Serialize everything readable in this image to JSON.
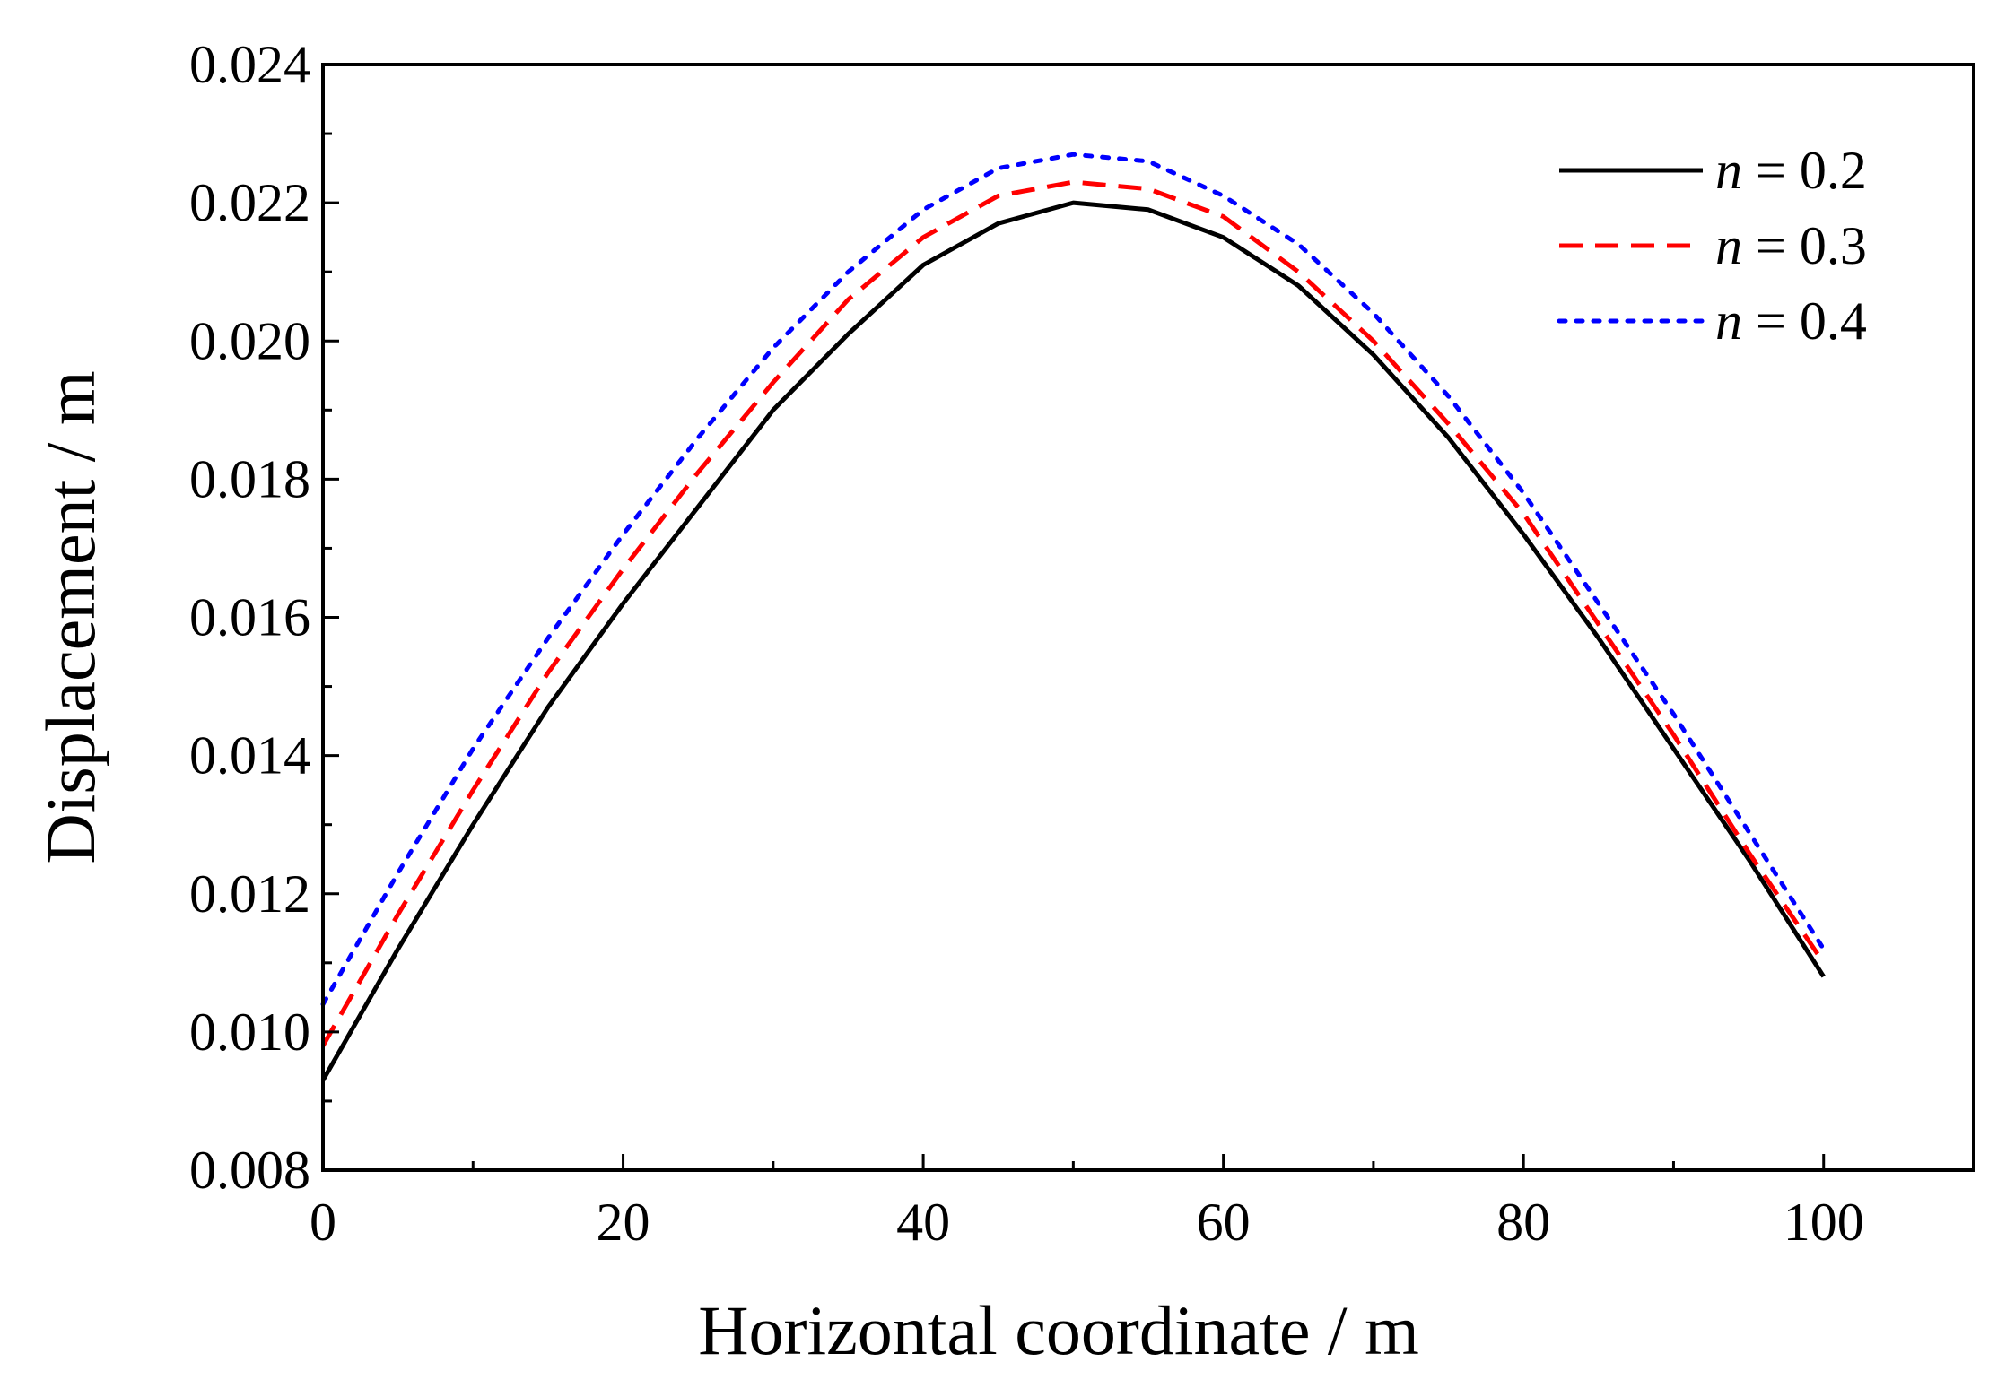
{
  "chart_data": {
    "type": "line",
    "title": "",
    "xlabel": "Horizontal coordinate / m",
    "ylabel": "Displacement / m",
    "xlim": [
      0,
      110
    ],
    "ylim": [
      0.008,
      0.024
    ],
    "xticks": [
      0,
      20,
      40,
      60,
      80,
      100
    ],
    "xtick_labels": [
      "0",
      "20",
      "40",
      "60",
      "80",
      "100"
    ],
    "yticks": [
      0.008,
      0.01,
      0.012,
      0.014,
      0.016,
      0.018,
      0.02,
      0.022,
      0.024
    ],
    "ytick_labels": [
      "0.008",
      "0.010",
      "0.012",
      "0.014",
      "0.016",
      "0.018",
      "0.020",
      "0.022",
      "0.024"
    ],
    "grid": false,
    "legend_position": "top-right",
    "x": [
      0,
      5,
      10,
      15,
      20,
      25,
      30,
      35,
      40,
      45,
      50,
      55,
      60,
      65,
      70,
      75,
      80,
      85,
      90,
      95,
      100
    ],
    "series": [
      {
        "name": "n = 0.2",
        "legend_var": "n",
        "legend_rest": " = 0.2",
        "color": "#000000",
        "style": "solid",
        "values": [
          0.0093,
          0.0112,
          0.013,
          0.0147,
          0.0162,
          0.0176,
          0.019,
          0.0201,
          0.0211,
          0.0217,
          0.022,
          0.0219,
          0.0215,
          0.0208,
          0.0198,
          0.0186,
          0.0172,
          0.0157,
          0.0141,
          0.0125,
          0.0108
        ]
      },
      {
        "name": "n = 0.3",
        "legend_var": "n",
        "legend_rest": " = 0.3",
        "color": "#ff0000",
        "style": "dashed",
        "values": [
          0.0098,
          0.0117,
          0.0135,
          0.0152,
          0.0167,
          0.0181,
          0.0194,
          0.0206,
          0.0215,
          0.0221,
          0.0223,
          0.0222,
          0.0218,
          0.021,
          0.02,
          0.0188,
          0.0175,
          0.0159,
          0.0143,
          0.0126,
          0.011
        ]
      },
      {
        "name": "n = 0.4",
        "legend_var": "n",
        "legend_rest": " = 0.4",
        "color": "#0000ff",
        "style": "dotted",
        "values": [
          0.0104,
          0.0123,
          0.0141,
          0.0157,
          0.0172,
          0.0186,
          0.0199,
          0.021,
          0.0219,
          0.0225,
          0.0227,
          0.0226,
          0.0221,
          0.0214,
          0.0204,
          0.0192,
          0.0178,
          0.0162,
          0.0146,
          0.0129,
          0.0112
        ]
      }
    ]
  }
}
